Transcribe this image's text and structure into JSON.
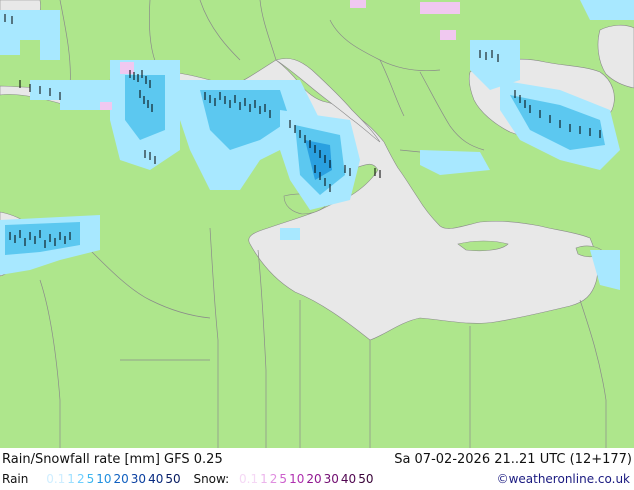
{
  "title": "Rain/Snowfall rate [mm] GFS 0.25",
  "valid_time": "Sa 07-02-2026 21..21 UTC (12+177)",
  "legend": {
    "rain_label": "Rain",
    "rain_levels": [
      {
        "value": "0.1",
        "color": "#cfeeff"
      },
      {
        "value": "1",
        "color": "#9fe0ff"
      },
      {
        "value": "2",
        "color": "#6fcfff"
      },
      {
        "value": "5",
        "color": "#3fb8f0"
      },
      {
        "value": "10",
        "color": "#2090e0"
      },
      {
        "value": "20",
        "color": "#1060c0"
      },
      {
        "value": "30",
        "color": "#0a3fa0"
      },
      {
        "value": "40",
        "color": "#082a80"
      },
      {
        "value": "50",
        "color": "#061a60"
      }
    ],
    "snow_label": "Snow:",
    "snow_levels": [
      {
        "value": "0.1",
        "color": "#f5d8f5"
      },
      {
        "value": "1",
        "color": "#ecb5ec"
      },
      {
        "value": "2",
        "color": "#e08fe0"
      },
      {
        "value": "5",
        "color": "#cc5fcc"
      },
      {
        "value": "10",
        "color": "#b030b0"
      },
      {
        "value": "20",
        "color": "#901890"
      },
      {
        "value": "30",
        "color": "#700c70"
      },
      {
        "value": "40",
        "color": "#500650"
      },
      {
        "value": "50",
        "color": "#380338"
      }
    ]
  },
  "credit": "©weatheronline.co.uk",
  "colors": {
    "land": "#aee68c",
    "sea": "#e8e8e8",
    "border": "#8a8a8a",
    "rain_light": "#a8e8ff",
    "rain_mid": "#5cc8f0",
    "rain_heavy": "#2aa0e0",
    "snow": "#f0c8f0"
  }
}
